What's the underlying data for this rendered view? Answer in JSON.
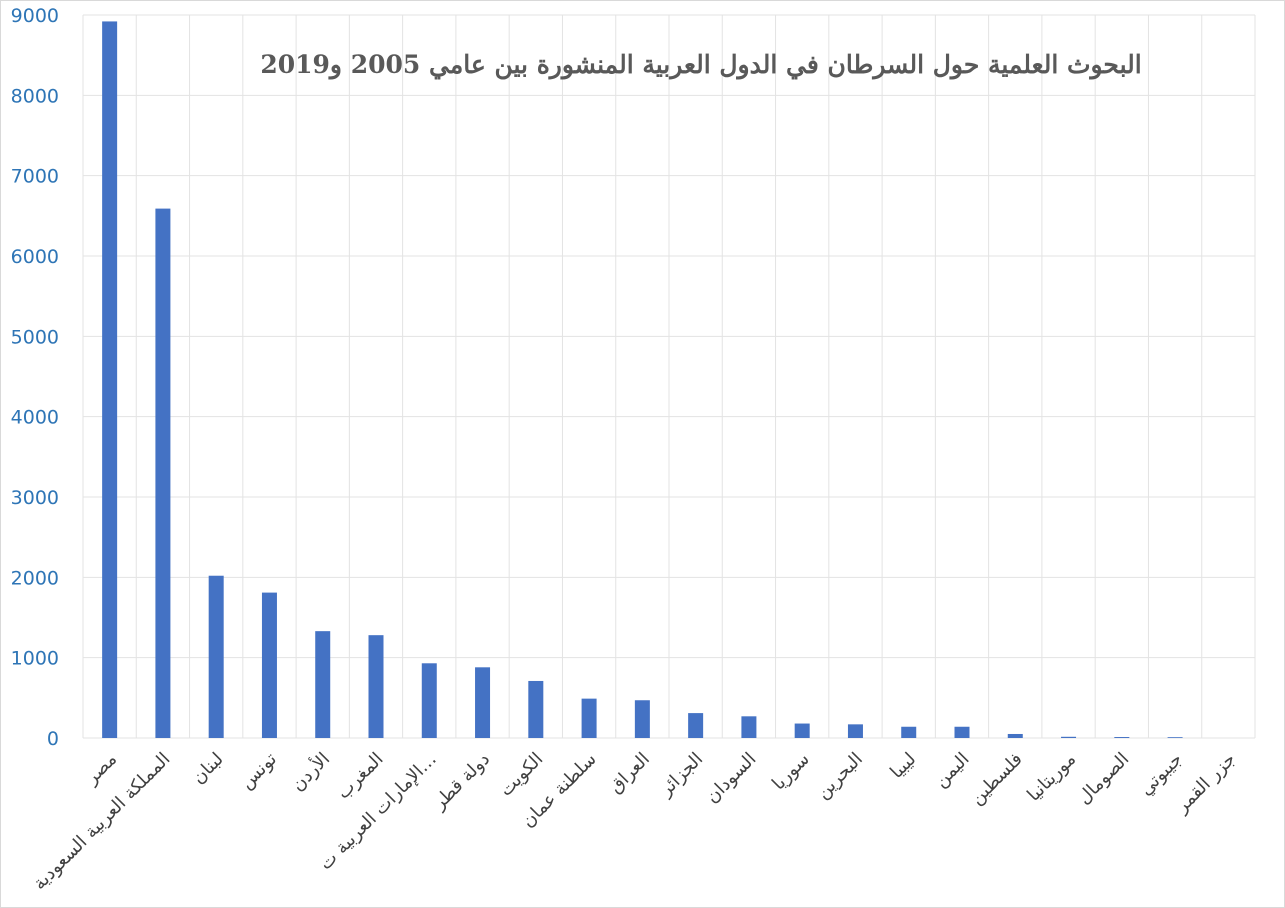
{
  "chart_data": {
    "type": "bar",
    "title": "البحوث العلمية حول السرطان في الدول العربية المنشورة بين عامي 2005 و2019",
    "xlabel": "",
    "ylabel": "",
    "ylim": [
      0,
      9000
    ],
    "yticks": [
      "0",
      "1000",
      "2000",
      "3000",
      "4000",
      "5000",
      "6000",
      "7000",
      "8000",
      "9000"
    ],
    "grid": true,
    "legend": "none",
    "categories": [
      "مصر",
      "المملكة العربية السعودية",
      "لبنان",
      "تونس",
      "الأردن",
      "المغرب",
      "الإمارات العربية ت…",
      "دولة قطر",
      "الكويت",
      "سلطنة عمان",
      "العراق",
      "الجزائر",
      "السودان",
      "سوريا",
      "البحرين",
      "ليبيا",
      "اليمن",
      "فلسطين",
      "موريتانيا",
      "الصومال",
      "جيبوتي",
      "جزر القمر"
    ],
    "values": [
      8920,
      6590,
      2020,
      1810,
      1330,
      1280,
      930,
      880,
      710,
      490,
      470,
      310,
      270,
      180,
      170,
      140,
      140,
      50,
      15,
      12,
      10,
      0
    ],
    "colors": {
      "bar": "#4472c4",
      "grid": "#e3e3e3",
      "axis_text": "#2e75b6",
      "title": "#595959"
    }
  }
}
